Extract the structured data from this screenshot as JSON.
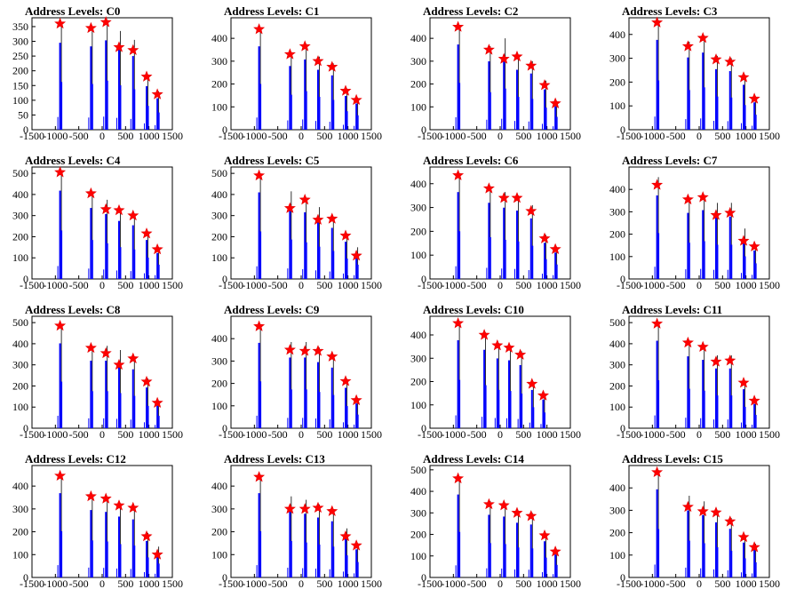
{
  "window": {
    "background": "#ffffff"
  },
  "style": {
    "hist_color": "#0000ff",
    "peak_outline": "#000000",
    "marker_fill": "#ff0000",
    "marker_stroke": "#e60000"
  },
  "chart_data": [
    {
      "type": "bar",
      "title": "Address Levels: C0",
      "xlim": [
        -1500,
        1500
      ],
      "ylim": [
        0,
        380
      ],
      "yticks": [
        0,
        50,
        100,
        150,
        200,
        250,
        300,
        350
      ],
      "xtick_labels": [
        "-1500",
        "-1000",
        "-500",
        "0",
        "500",
        "1000",
        "1500"
      ],
      "peaks": [
        {
          "x": -900,
          "y": 360,
          "marker": 360
        },
        {
          "x": -240,
          "y": 345,
          "marker": 345
        },
        {
          "x": 80,
          "y": 370,
          "marker": 365
        },
        {
          "x": 360,
          "y": 335,
          "marker": 280
        },
        {
          "x": 660,
          "y": 305,
          "marker": 270
        },
        {
          "x": 950,
          "y": 180,
          "marker": 180
        },
        {
          "x": 1180,
          "y": 130,
          "marker": 120
        }
      ]
    },
    {
      "type": "bar",
      "title": "Address Levels: C1",
      "xlim": [
        -1500,
        1500
      ],
      "ylim": [
        0,
        490
      ],
      "yticks": [
        0,
        100,
        200,
        300,
        400
      ],
      "xtick_labels": [
        "-1500",
        "-1000",
        "-500",
        "0",
        "500",
        "1000",
        "1500"
      ],
      "peaks": [
        {
          "x": -900,
          "y": 445,
          "marker": 440
        },
        {
          "x": -240,
          "y": 340,
          "marker": 330
        },
        {
          "x": 80,
          "y": 375,
          "marker": 365
        },
        {
          "x": 360,
          "y": 320,
          "marker": 300
        },
        {
          "x": 660,
          "y": 290,
          "marker": 275
        },
        {
          "x": 950,
          "y": 180,
          "marker": 170
        },
        {
          "x": 1180,
          "y": 140,
          "marker": 130
        }
      ]
    },
    {
      "type": "bar",
      "title": "Address Levels: C2",
      "xlim": [
        -1500,
        1500
      ],
      "ylim": [
        0,
        490
      ],
      "yticks": [
        0,
        100,
        200,
        300,
        400
      ],
      "xtick_labels": [
        "-1500",
        "-1000",
        "-500",
        "0",
        "500",
        "1000",
        "1500"
      ],
      "peaks": [
        {
          "x": -900,
          "y": 455,
          "marker": 450
        },
        {
          "x": -240,
          "y": 365,
          "marker": 350
        },
        {
          "x": 80,
          "y": 400,
          "marker": 310
        },
        {
          "x": 360,
          "y": 320,
          "marker": 320
        },
        {
          "x": 660,
          "y": 300,
          "marker": 280
        },
        {
          "x": 950,
          "y": 215,
          "marker": 195
        },
        {
          "x": 1180,
          "y": 125,
          "marker": 115
        }
      ]
    },
    {
      "type": "bar",
      "title": "Address Levels: C3",
      "xlim": [
        -1500,
        1500
      ],
      "ylim": [
        0,
        470
      ],
      "yticks": [
        0,
        100,
        200,
        300,
        400
      ],
      "xtick_labels": [
        "-1500",
        "-1000",
        "-500",
        "0",
        "500",
        "1000",
        "1500"
      ],
      "peaks": [
        {
          "x": -900,
          "y": 460,
          "marker": 450
        },
        {
          "x": -240,
          "y": 370,
          "marker": 350
        },
        {
          "x": 80,
          "y": 395,
          "marker": 385
        },
        {
          "x": 360,
          "y": 310,
          "marker": 295
        },
        {
          "x": 660,
          "y": 300,
          "marker": 285
        },
        {
          "x": 950,
          "y": 230,
          "marker": 220
        },
        {
          "x": 1180,
          "y": 140,
          "marker": 130
        }
      ]
    },
    {
      "type": "bar",
      "title": "Address Levels: C4",
      "xlim": [
        -1500,
        1500
      ],
      "ylim": [
        0,
        530
      ],
      "yticks": [
        0,
        100,
        200,
        300,
        400,
        500
      ],
      "xtick_labels": [
        "-1500",
        "-1000",
        "-500",
        "0",
        "500",
        "1000",
        "1500"
      ],
      "peaks": [
        {
          "x": -900,
          "y": 510,
          "marker": 505
        },
        {
          "x": -240,
          "y": 410,
          "marker": 405
        },
        {
          "x": 80,
          "y": 375,
          "marker": 330
        },
        {
          "x": 360,
          "y": 335,
          "marker": 325
        },
        {
          "x": 660,
          "y": 310,
          "marker": 300
        },
        {
          "x": 950,
          "y": 225,
          "marker": 215
        },
        {
          "x": 1180,
          "y": 150,
          "marker": 140
        }
      ]
    },
    {
      "type": "bar",
      "title": "Address Levels: C5",
      "xlim": [
        -1500,
        1500
      ],
      "ylim": [
        0,
        530
      ],
      "yticks": [
        0,
        100,
        200,
        300,
        400,
        500
      ],
      "xtick_labels": [
        "-1500",
        "-1000",
        "-500",
        "0",
        "500",
        "1000",
        "1500"
      ],
      "peaks": [
        {
          "x": -900,
          "y": 500,
          "marker": 490
        },
        {
          "x": -240,
          "y": 415,
          "marker": 335
        },
        {
          "x": 80,
          "y": 385,
          "marker": 375
        },
        {
          "x": 360,
          "y": 340,
          "marker": 280
        },
        {
          "x": 660,
          "y": 295,
          "marker": 285
        },
        {
          "x": 950,
          "y": 215,
          "marker": 205
        },
        {
          "x": 1180,
          "y": 150,
          "marker": 110
        }
      ]
    },
    {
      "type": "bar",
      "title": "Address Levels: C6",
      "xlim": [
        -1500,
        1500
      ],
      "ylim": [
        0,
        470
      ],
      "yticks": [
        0,
        100,
        200,
        300,
        400
      ],
      "xtick_labels": [
        "-1500",
        "-1000",
        "-500",
        "0",
        "500",
        "1000",
        "1500"
      ],
      "peaks": [
        {
          "x": -900,
          "y": 445,
          "marker": 435
        },
        {
          "x": -240,
          "y": 390,
          "marker": 380
        },
        {
          "x": 80,
          "y": 365,
          "marker": 340
        },
        {
          "x": 360,
          "y": 350,
          "marker": 340
        },
        {
          "x": 660,
          "y": 310,
          "marker": 285
        },
        {
          "x": 950,
          "y": 185,
          "marker": 170
        },
        {
          "x": 1180,
          "y": 135,
          "marker": 125
        }
      ]
    },
    {
      "type": "bar",
      "title": "Address Levels: C7",
      "xlim": [
        -1500,
        1500
      ],
      "ylim": [
        0,
        500
      ],
      "yticks": [
        0,
        100,
        200,
        300,
        400
      ],
      "xtick_labels": [
        "-1500",
        "-1000",
        "-500",
        "0",
        "500",
        "1000",
        "1500"
      ],
      "peaks": [
        {
          "x": -900,
          "y": 455,
          "marker": 420
        },
        {
          "x": -240,
          "y": 360,
          "marker": 355
        },
        {
          "x": 80,
          "y": 375,
          "marker": 365
        },
        {
          "x": 360,
          "y": 340,
          "marker": 285
        },
        {
          "x": 660,
          "y": 340,
          "marker": 295
        },
        {
          "x": 950,
          "y": 225,
          "marker": 170
        },
        {
          "x": 1180,
          "y": 155,
          "marker": 145
        }
      ]
    },
    {
      "type": "bar",
      "title": "Address Levels: C8",
      "xlim": [
        -1500,
        1500
      ],
      "ylim": [
        0,
        530
      ],
      "yticks": [
        0,
        100,
        200,
        300,
        400,
        500
      ],
      "xtick_labels": [
        "-1500",
        "-1000",
        "-500",
        "0",
        "500",
        "1000",
        "1500"
      ],
      "peaks": [
        {
          "x": -900,
          "y": 490,
          "marker": 485
        },
        {
          "x": -240,
          "y": 390,
          "marker": 380
        },
        {
          "x": 80,
          "y": 390,
          "marker": 355
        },
        {
          "x": 360,
          "y": 370,
          "marker": 300
        },
        {
          "x": 660,
          "y": 340,
          "marker": 330
        },
        {
          "x": 950,
          "y": 235,
          "marker": 220
        },
        {
          "x": 1180,
          "y": 130,
          "marker": 120
        }
      ]
    },
    {
      "type": "bar",
      "title": "Address Levels: C9",
      "xlim": [
        -1500,
        1500
      ],
      "ylim": [
        0,
        500
      ],
      "yticks": [
        0,
        100,
        200,
        300,
        400
      ],
      "xtick_labels": [
        "-1500",
        "-1000",
        "-500",
        "0",
        "500",
        "1000",
        "1500"
      ],
      "peaks": [
        {
          "x": -900,
          "y": 465,
          "marker": 455
        },
        {
          "x": -240,
          "y": 385,
          "marker": 350
        },
        {
          "x": 80,
          "y": 385,
          "marker": 345
        },
        {
          "x": 360,
          "y": 360,
          "marker": 345
        },
        {
          "x": 660,
          "y": 330,
          "marker": 320
        },
        {
          "x": 950,
          "y": 220,
          "marker": 210
        },
        {
          "x": 1180,
          "y": 135,
          "marker": 125
        }
      ]
    },
    {
      "type": "bar",
      "title": "Address Levels: C10",
      "xlim": [
        -1500,
        1500
      ],
      "ylim": [
        0,
        480
      ],
      "yticks": [
        0,
        100,
        200,
        300,
        400
      ],
      "xtick_labels": [
        "-1500",
        "-1000",
        "-500",
        "0",
        "500",
        "1000",
        "1500"
      ],
      "peaks": [
        {
          "x": -900,
          "y": 460,
          "marker": 450
        },
        {
          "x": -340,
          "y": 410,
          "marker": 400
        },
        {
          "x": -60,
          "y": 365,
          "marker": 355
        },
        {
          "x": 190,
          "y": 355,
          "marker": 345
        },
        {
          "x": 430,
          "y": 330,
          "marker": 315
        },
        {
          "x": 680,
          "y": 200,
          "marker": 190
        },
        {
          "x": 920,
          "y": 150,
          "marker": 140
        }
      ]
    },
    {
      "type": "bar",
      "title": "Address Levels: C11",
      "xlim": [
        -1500,
        1500
      ],
      "ylim": [
        0,
        530
      ],
      "yticks": [
        0,
        100,
        200,
        300,
        400,
        500
      ],
      "xtick_labels": [
        "-1500",
        "-1000",
        "-500",
        "0",
        "500",
        "1000",
        "1500"
      ],
      "peaks": [
        {
          "x": -900,
          "y": 505,
          "marker": 495
        },
        {
          "x": -240,
          "y": 415,
          "marker": 405
        },
        {
          "x": 80,
          "y": 395,
          "marker": 385
        },
        {
          "x": 360,
          "y": 345,
          "marker": 315
        },
        {
          "x": 660,
          "y": 345,
          "marker": 320
        },
        {
          "x": 950,
          "y": 225,
          "marker": 215
        },
        {
          "x": 1180,
          "y": 140,
          "marker": 130
        }
      ]
    },
    {
      "type": "bar",
      "title": "Address Levels: C12",
      "xlim": [
        -1500,
        1500
      ],
      "ylim": [
        0,
        490
      ],
      "yticks": [
        0,
        100,
        200,
        300,
        400
      ],
      "xtick_labels": [
        "-1500",
        "-1000",
        "-500",
        "0",
        "500",
        "1000",
        "1500"
      ],
      "peaks": [
        {
          "x": -900,
          "y": 450,
          "marker": 445
        },
        {
          "x": -240,
          "y": 360,
          "marker": 355
        },
        {
          "x": 80,
          "y": 350,
          "marker": 345
        },
        {
          "x": 360,
          "y": 325,
          "marker": 315
        },
        {
          "x": 660,
          "y": 310,
          "marker": 305
        },
        {
          "x": 950,
          "y": 195,
          "marker": 180
        },
        {
          "x": 1180,
          "y": 135,
          "marker": 100
        }
      ]
    },
    {
      "type": "bar",
      "title": "Address Levels: C13",
      "xlim": [
        -1500,
        1500
      ],
      "ylim": [
        0,
        490
      ],
      "yticks": [
        0,
        100,
        200,
        300,
        400
      ],
      "xtick_labels": [
        "-1500",
        "-1000",
        "-500",
        "0",
        "500",
        "1000",
        "1500"
      ],
      "peaks": [
        {
          "x": -900,
          "y": 450,
          "marker": 440
        },
        {
          "x": -240,
          "y": 355,
          "marker": 300
        },
        {
          "x": 80,
          "y": 340,
          "marker": 300
        },
        {
          "x": 360,
          "y": 320,
          "marker": 305
        },
        {
          "x": 660,
          "y": 300,
          "marker": 290
        },
        {
          "x": 950,
          "y": 215,
          "marker": 180
        },
        {
          "x": 1180,
          "y": 150,
          "marker": 140
        }
      ]
    },
    {
      "type": "bar",
      "title": "Address Levels: C14",
      "xlim": [
        -1500,
        1500
      ],
      "ylim": [
        0,
        520
      ],
      "yticks": [
        0,
        100,
        200,
        300,
        400,
        500
      ],
      "xtick_labels": [
        "-1500",
        "-1000",
        "-500",
        "0",
        "500",
        "1000",
        "1500"
      ],
      "peaks": [
        {
          "x": -900,
          "y": 470,
          "marker": 460
        },
        {
          "x": -240,
          "y": 355,
          "marker": 340
        },
        {
          "x": 80,
          "y": 345,
          "marker": 335
        },
        {
          "x": 360,
          "y": 310,
          "marker": 300
        },
        {
          "x": 660,
          "y": 300,
          "marker": 285
        },
        {
          "x": 950,
          "y": 205,
          "marker": 195
        },
        {
          "x": 1180,
          "y": 130,
          "marker": 120
        }
      ]
    },
    {
      "type": "bar",
      "title": "Address Levels: C15",
      "xlim": [
        -1500,
        1500
      ],
      "ylim": [
        0,
        500
      ],
      "yticks": [
        0,
        100,
        200,
        300,
        400
      ],
      "xtick_labels": [
        "-1500",
        "-1000",
        "-500",
        "0",
        "500",
        "1000",
        "1500"
      ],
      "peaks": [
        {
          "x": -900,
          "y": 480,
          "marker": 470
        },
        {
          "x": -240,
          "y": 365,
          "marker": 315
        },
        {
          "x": 80,
          "y": 340,
          "marker": 295
        },
        {
          "x": 360,
          "y": 300,
          "marker": 290
        },
        {
          "x": 660,
          "y": 265,
          "marker": 250
        },
        {
          "x": 950,
          "y": 190,
          "marker": 180
        },
        {
          "x": 1180,
          "y": 150,
          "marker": 135
        }
      ]
    }
  ]
}
